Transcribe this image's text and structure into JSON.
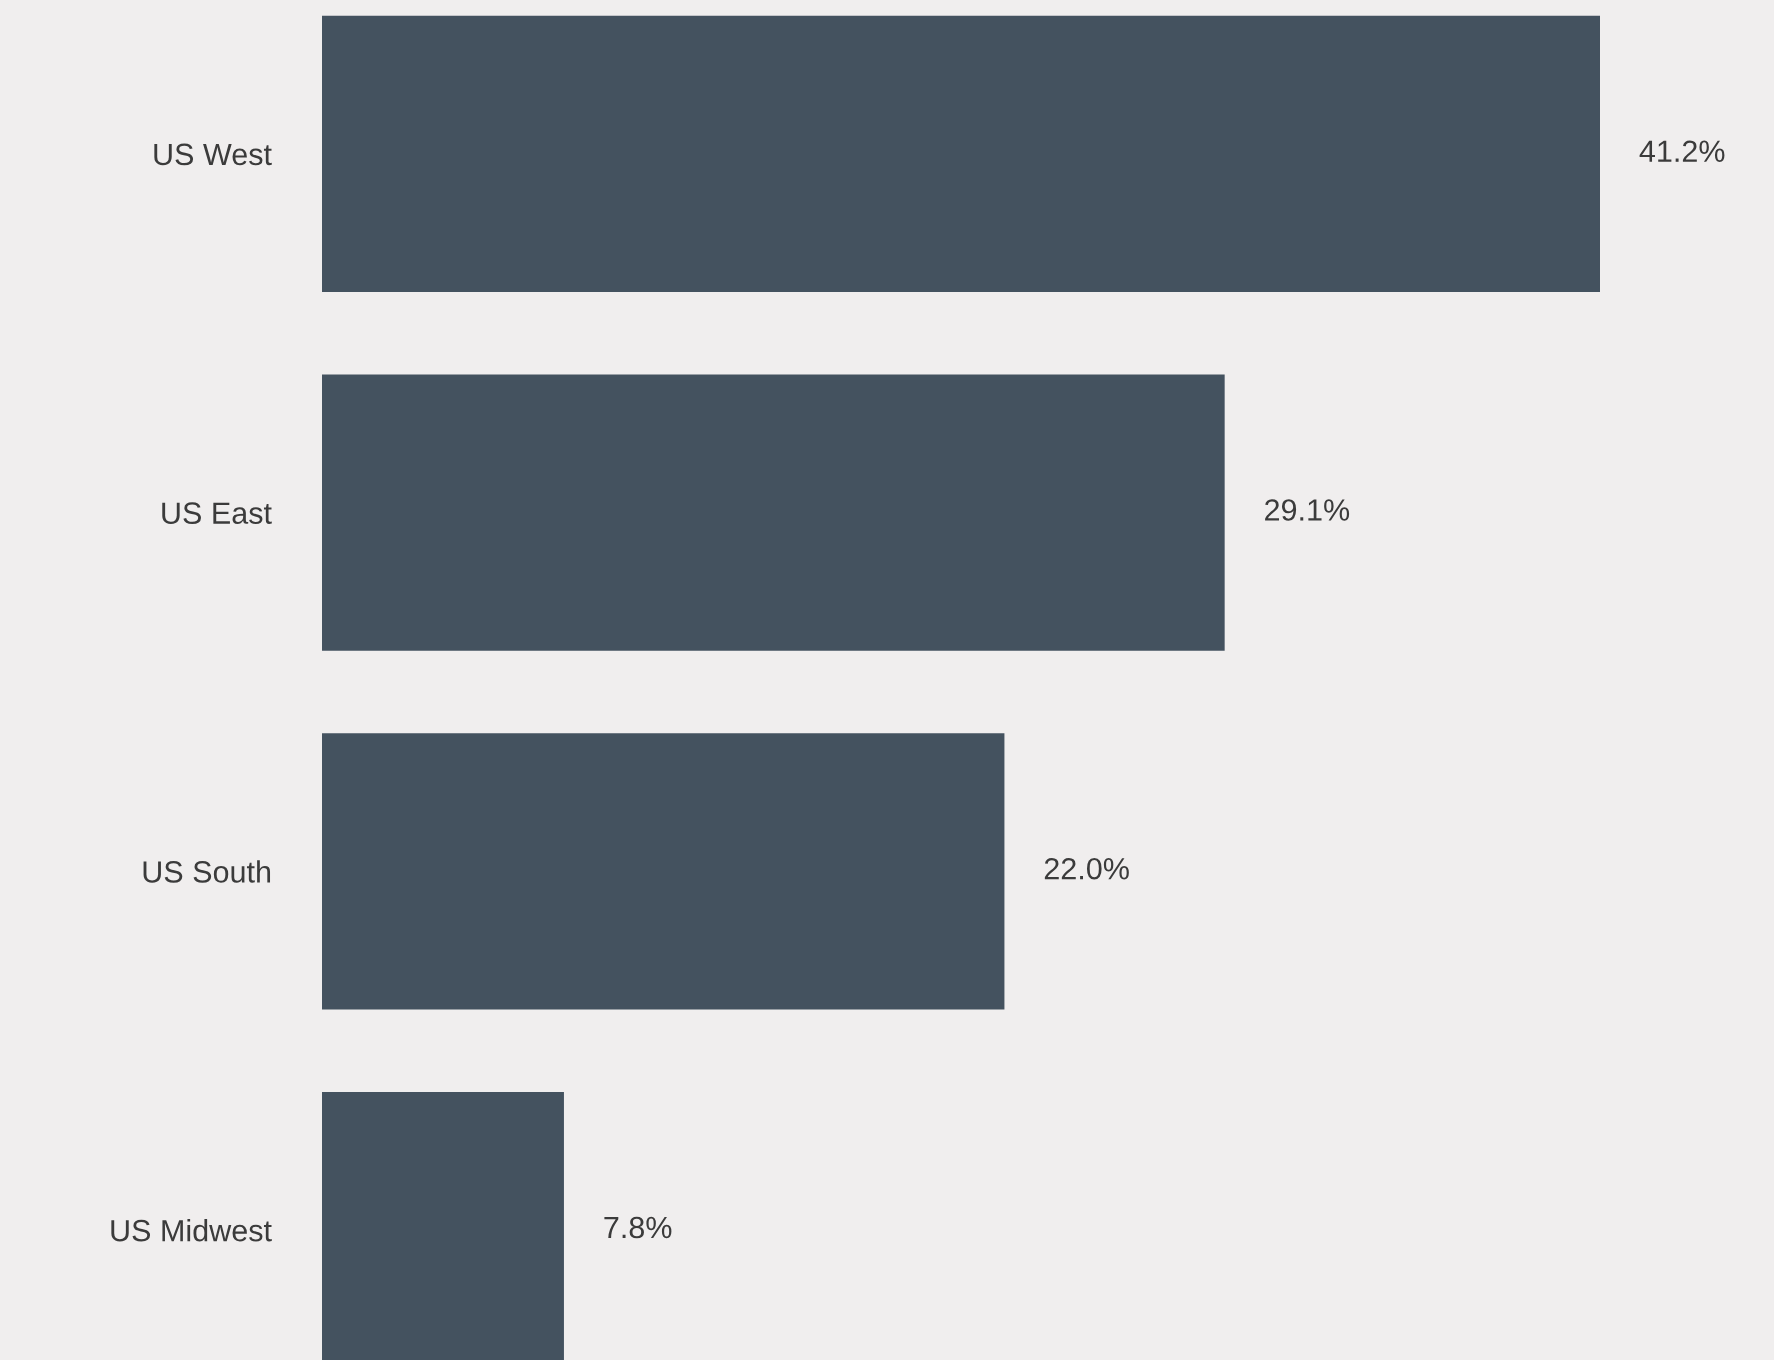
{
  "chart_data": {
    "type": "bar",
    "orientation": "horizontal",
    "categories": [
      "US West",
      "US East",
      "US South",
      "US Midwest"
    ],
    "values": [
      41.2,
      29.1,
      22.0,
      7.8
    ],
    "value_labels": [
      "41.2%",
      "29.1%",
      "22.0%",
      "7.8%"
    ],
    "color": "#44525f",
    "grid": false,
    "legend": false
  }
}
